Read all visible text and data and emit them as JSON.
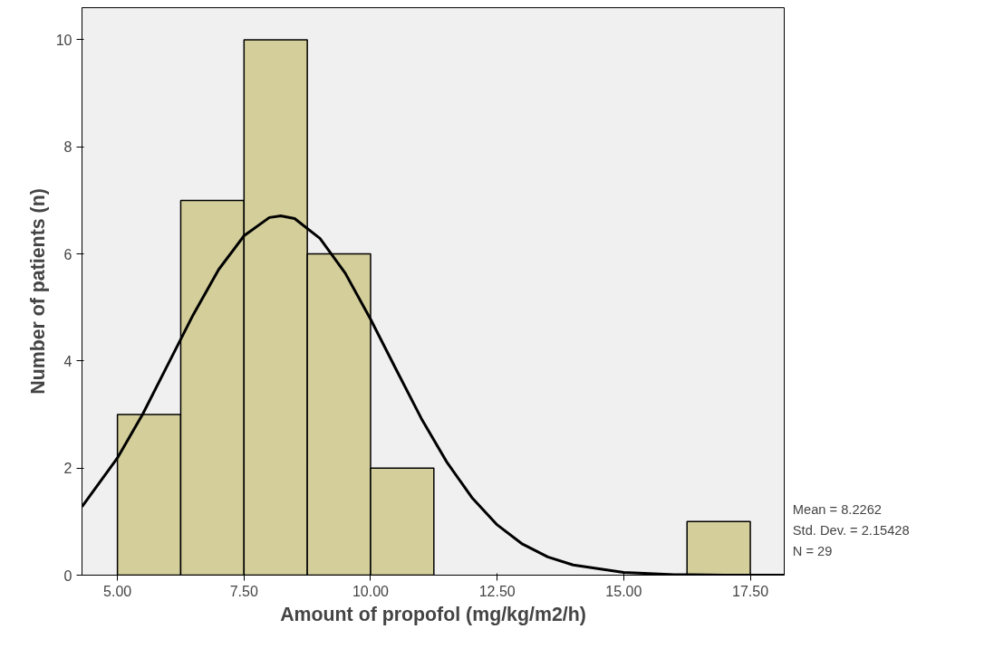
{
  "chart_data": {
    "type": "histogram",
    "xlabel": "Amount of propofol (mg/kg/m2/h)",
    "ylabel": "Number of patients (n)",
    "xlim": [
      4.3,
      18.17
    ],
    "ylim": [
      0,
      10.6
    ],
    "xticks": [
      {
        "value": 5,
        "label": "5.00"
      },
      {
        "value": 7.5,
        "label": "7.50"
      },
      {
        "value": 10,
        "label": "10.00"
      },
      {
        "value": 12.5,
        "label": "12.50"
      },
      {
        "value": 15,
        "label": "15.00"
      },
      {
        "value": 17.5,
        "label": "17.50"
      }
    ],
    "yticks": [
      0,
      2,
      4,
      6,
      8,
      10
    ],
    "grid": false,
    "series": [
      {
        "color": "#d3ce9a",
        "bins": [
          5,
          6.25,
          7.5,
          8.75,
          10,
          11.25,
          12.5,
          13.75,
          15,
          16.25,
          17.5
        ],
        "values": [
          3,
          7,
          10,
          6,
          2,
          0,
          0,
          0,
          0,
          1
        ]
      },
      {
        "type": "line",
        "color": "#000000",
        "x": [
          4.3,
          5,
          5.5,
          6,
          6.5,
          7,
          7.5,
          8,
          8.2262,
          8.5,
          9,
          9.5,
          10,
          10.5,
          11,
          11.5,
          12,
          12.5,
          13,
          13.5,
          14,
          15,
          16,
          17,
          18.17
        ],
        "values": [
          1.28,
          2.19,
          3.01,
          3.94,
          4.87,
          5.71,
          6.34,
          6.68,
          6.71,
          6.66,
          6.29,
          5.64,
          4.78,
          3.85,
          2.93,
          2.12,
          1.45,
          0.94,
          0.58,
          0.34,
          0.19,
          0.05,
          0.01,
          0,
          0
        ]
      }
    ],
    "annotations": [
      "Mean = 8.2262",
      "Std. Dev. = 2.15428",
      "N = 29"
    ]
  }
}
